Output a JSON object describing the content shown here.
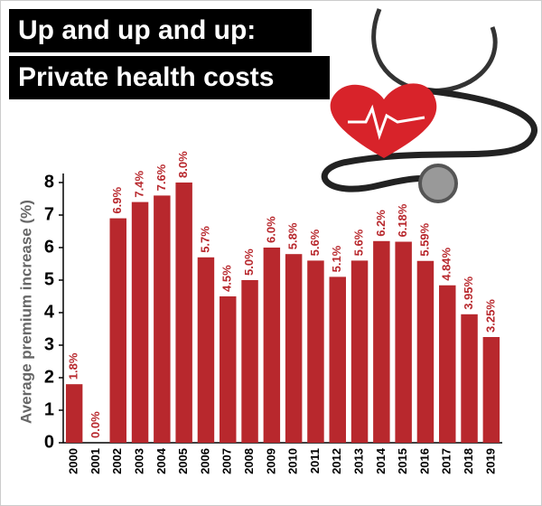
{
  "chart_data": {
    "type": "bar",
    "title": [
      "Up and up and up:",
      "Private health costs"
    ],
    "y_label": "Average premium increase (%)",
    "categories": [
      "2000",
      "2001",
      "2002",
      "2003",
      "2004",
      "2005",
      "2006",
      "2007",
      "2008",
      "2009",
      "2010",
      "2011",
      "2012",
      "2013",
      "2014",
      "2015",
      "2016",
      "2017",
      "2018",
      "2019"
    ],
    "values": [
      1.8,
      0.0,
      6.9,
      7.4,
      7.6,
      8.0,
      5.7,
      4.5,
      5.0,
      6.0,
      5.8,
      5.6,
      5.1,
      5.6,
      6.2,
      6.18,
      5.59,
      4.84,
      3.95,
      3.25
    ],
    "value_labels": [
      "1.8%",
      "0.0%",
      "6.9%",
      "7.4%",
      "7.6%",
      "8.0%",
      "5.7%",
      "4.5%",
      "5.0%",
      "6.0%",
      "5.8%",
      "5.6%",
      "5.1%",
      "5.6%",
      "6.2%",
      "6.18%",
      "5.59%",
      "4.84%",
      "3.95%",
      "3.25%"
    ],
    "color": "#b8282d",
    "ylim": [
      0,
      8
    ],
    "yticks": [
      0,
      1,
      2,
      3,
      4,
      5,
      6,
      7,
      8
    ]
  }
}
